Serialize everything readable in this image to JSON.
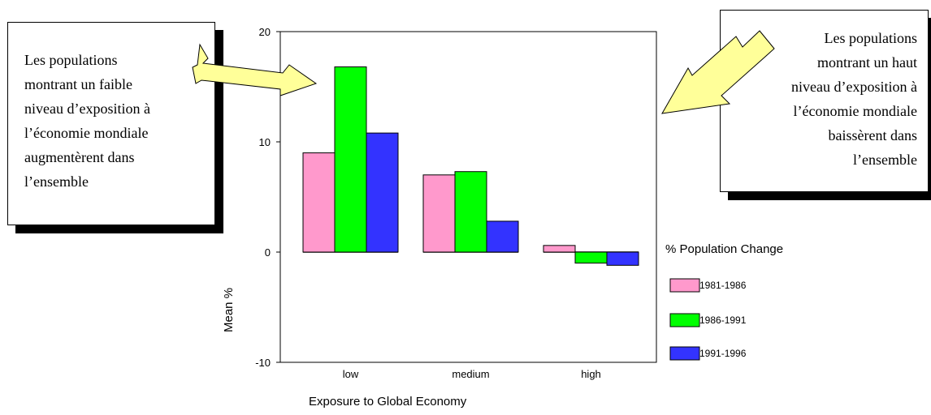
{
  "page": {
    "title": "",
    "legend_title": "% Population Change"
  },
  "callouts": {
    "left": {
      "lines": [
        "Les populations",
        "montrant un faible",
        "niveau d’exposition à",
        "l’économie mondiale",
        "augmentèrent dans",
        "l’ensemble"
      ]
    },
    "right": {
      "lines": [
        "Les populations",
        "montrant un haut",
        "niveau d’exposition à",
        "l’économie mondiale",
        "baissèrent dans",
        "l’ensemble"
      ]
    }
  },
  "colors": {
    "series": [
      "#ff99cc",
      "#00ff00",
      "#3333ff"
    ],
    "arrow_fill": "#ffff99",
    "frame": "#000000"
  },
  "chart_data": {
    "type": "bar",
    "categories": [
      "low",
      "medium",
      "high"
    ],
    "series": [
      {
        "name": "1981-1986",
        "values": [
          9.0,
          7.0,
          0.6
        ]
      },
      {
        "name": "1986-1991",
        "values": [
          16.8,
          7.3,
          -1.0
        ]
      },
      {
        "name": "1991-1996",
        "values": [
          10.8,
          2.8,
          -1.2
        ]
      }
    ],
    "title": "",
    "xlabel": "Exposure to Global Economy",
    "ylabel": "Mean %",
    "ylim": [
      -10,
      20
    ],
    "yticks": [
      -10,
      0,
      10,
      20
    ],
    "grid": false,
    "legend_position": "right"
  }
}
